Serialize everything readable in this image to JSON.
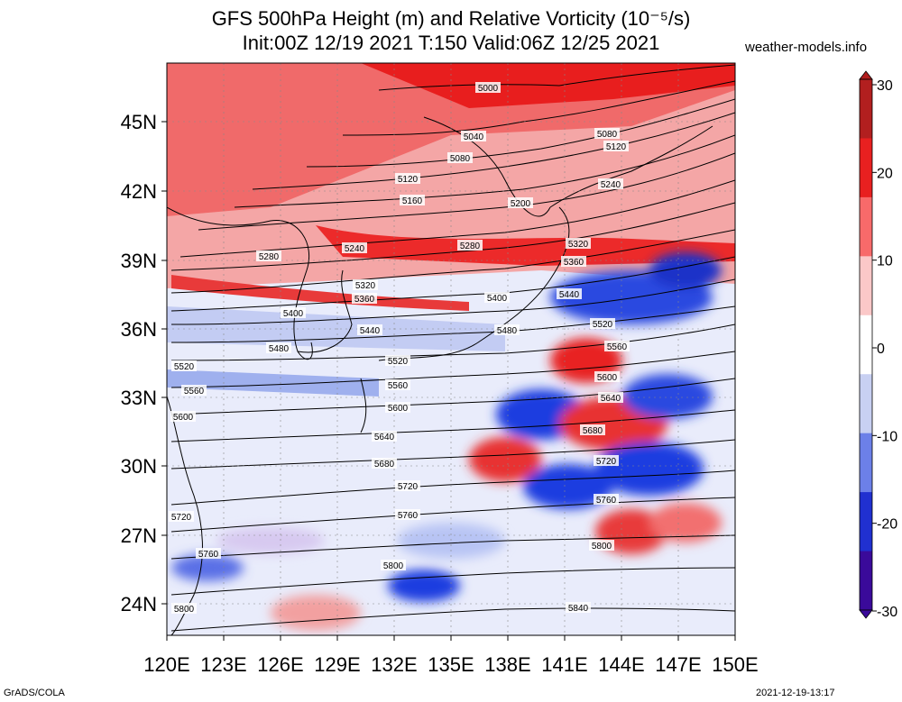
{
  "title_line1": "GFS 500hPa Height (m) and Relative Vorticity (10⁻⁵/s)",
  "title_line2": "Init:00Z 12/19 2021 T:150 Valid:06Z 12/25 2021",
  "site": "weather-models.info",
  "footer_left": "GrADS/COLA",
  "footer_right": "2021-12-19-13:17",
  "lat_ticks": [
    "24N",
    "27N",
    "30N",
    "33N",
    "36N",
    "39N",
    "42N",
    "45N"
  ],
  "lon_ticks": [
    "120E",
    "123E",
    "126E",
    "129E",
    "132E",
    "135E",
    "138E",
    "141E",
    "144E",
    "147E",
    "150E"
  ],
  "colorbar": {
    "labels": [
      "30",
      "20",
      "10",
      "0",
      "-10",
      "-20",
      "-30"
    ],
    "colors": [
      "#b21f1f",
      "#e82020",
      "#f86a6a",
      "#fbc8c8",
      "#ffffff",
      "#c8d0f2",
      "#6c80e8",
      "#2030d0",
      "#3a0a9a"
    ]
  },
  "contour_labels": [
    "5000",
    "5040",
    "5080",
    "5120",
    "5160",
    "5200",
    "5240",
    "5280",
    "5320",
    "5360",
    "5400",
    "5440",
    "5480",
    "5520",
    "5560",
    "5600",
    "5640",
    "5680",
    "5720",
    "5760",
    "5800",
    "5840"
  ],
  "palette": {
    "red": "#e8231f",
    "pink": "#f9b3b3",
    "blue": "#1f3ee0",
    "lightblue": "#b8c4f4"
  }
}
